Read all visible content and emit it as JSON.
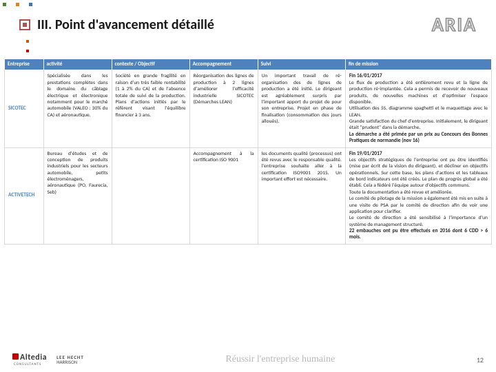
{
  "decor": {
    "corner_colors": [
      "#548235",
      "#e67e22",
      "#4472c4"
    ],
    "side_colors": [
      "#c55a11",
      "#c00000"
    ]
  },
  "header": {
    "title": "III. Point d'avancement détaillé",
    "brand": "ARIA"
  },
  "table": {
    "columns": [
      "Entreprise",
      "activité",
      "contexte / Objectif",
      "Accompagnement",
      "Suivi",
      "fin de mission"
    ],
    "col_widths": [
      "8%",
      "14%",
      "16%",
      "14%",
      "18%",
      "30%"
    ],
    "rows": [
      {
        "entreprise": "SICOTEC",
        "activite": "Spécialisée dans les prestations complètes dans le domaine du câblage électrique et électronique notamment pour le marché automobile (VALEO : 30% du CA) et aéronautique.",
        "contexte": "Société en grande fragilité en raison d'un très faible rentabilité (1 à 2% du CA) et de l'absence totale de suivi de la production.\nPlans d'actions initiés par le référent visant l'équilibre financier à 3 ans.",
        "accompagnement": "Réorganisation des lignes de production à 2 lignes d'améliorer l'efficacité industrielle SICOTEC (Démarches LEAN)",
        "suivi": "Un important travail de ré-organisation des de lignes de production a été initié. Le dirigeant est agréablement surpris par l'important apport du projet de pour son entreprise. Projet en phase de finalisation (consommation des jours alloués).",
        "fin": "<b>Fin 16/01/2017</b><br>Le flux de production a été entièrement revu et la ligne de production ré-implantée. Cela a permis de recevoir de nouveaux produits, de nouvelles machines et d'optimiser l'espace disponible.<br>Utilisation des 5S, diagramme spaghetti et le maquettage avec le LEAN.<br>Grande satisfaction du chef d'entreprise. Initialement, le dirigeant était \"prudent\" dans la démarche.<br><b>La démarche a été primée par un prix au Concours des Bonnes Pratiques de normandie (nov 16)</b>"
      },
      {
        "entreprise": "ACTIVETECH",
        "activite": "Bureau d'études et de conception de produits industriels pour les secteurs automobile, petits électroménagers, aéronautique (PO, Faurecia, Seb)",
        "contexte": "",
        "accompagnement": "Accompagnement à la certification ISO 9001",
        "suivi": "les documents qualité (processus) ont été revus avec le responsable qualité. l'entreprise souhaite aller à la certification ISO9001 2015. Un important effort est nécessaire.",
        "fin": "<b>Fin 19/01/2017</b><br>Les objectifs stratégiques de l'entreprise ont pu être identifiés (mise par écrit de la vision du dirigeant), et décliner en objectifs opérationnels. Sur cette base, les plans d'actions et les tableaux de bord indicateurs ont été créés. Le plan de progrès global a été établi. Cela a fédéré l'équipe autour d'objectifs communs.<br>Toute la documentation a été revue et améliorée.<br>Le comité de pilotage de la mission a également été mis en suite à une visite de PSA par le comité de direction afin de voir une application pour clarifier.<br>Le comité de direction a été sensibilisé à l'importance d'un système de management structuré.<br><b>22 embauches ont pu être effectués en 2016 dont 6 CDD > 6 mois.</b>"
      }
    ]
  },
  "footer": {
    "logo1": "Altedia",
    "logo1_sub": "CONSULTANTS",
    "logo2_l1": "LEE HECHT",
    "logo2_l2": "HARRISON",
    "slogan": "Réussir l'entreprise humaine",
    "page": "12"
  }
}
